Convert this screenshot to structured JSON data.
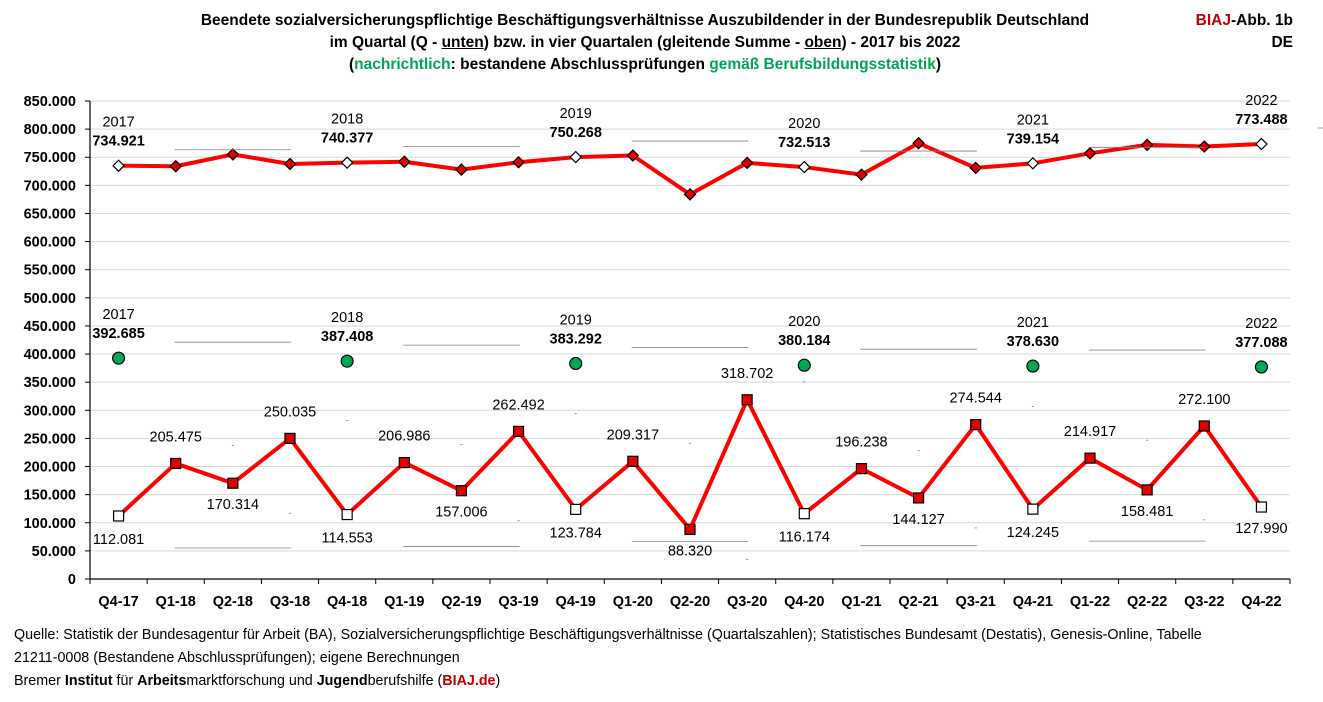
{
  "title": {
    "line1": "Beendete sozialversicherungspflichtige Beschäftigungsverhältnisse Auszubildender in der Bundesrepublik Deutschland",
    "line2_a": "im Quartal (Q - ",
    "line2_unten": "unten",
    "line2_b": ") bzw. in vier Quartalen (gleitende Summe - ",
    "line2_oben": "oben",
    "line2_c": ") - 2017 bis 2022",
    "line3_open": "(",
    "line3_nachrichtlich": "nachrichtlich",
    "line3_mid": ": bestandene Abschlussprüfungen ",
    "line3_gemaess": "gemäß Berufsbildungsstatistik",
    "line3_close": ")"
  },
  "badge": {
    "biaj": "BIAJ",
    "abb": "-Abb. 1b",
    "region": "DE"
  },
  "source": {
    "line1": "Quelle: Statistik der Bundesagentur für Arbeit (BA), Sozialversicherungspflichtige Beschäftigungsverhältnisse (Quartalszahlen); Statistisches Bundesamt (Destatis), Genesis-Online, Tabelle",
    "line2": "21211-0008 (Bestandene Abschlussprüfungen); eigene Berechnungen",
    "line3_a": "Bremer ",
    "line3_b": "Institut",
    "line3_c": " für ",
    "line3_d": "Arbeits",
    "line3_e": "marktforschung und ",
    "line3_f": "Jugend",
    "line3_g": "berufshilfe (",
    "line3_h": "BIAJ.de",
    "line3_i": ")"
  },
  "colors": {
    "series_line": "#ff0000",
    "q4_marker": "#ffffff",
    "other_marker": "#e00000",
    "green_marker": "#00a651",
    "accent_red": "#c00000"
  },
  "chart_data": {
    "type": "line",
    "categories": [
      "Q4-17",
      "Q1-18",
      "Q2-18",
      "Q3-18",
      "Q4-18",
      "Q1-19",
      "Q2-19",
      "Q3-19",
      "Q4-19",
      "Q1-20",
      "Q2-20",
      "Q3-20",
      "Q4-20",
      "Q1-21",
      "Q2-21",
      "Q3-21",
      "Q4-21",
      "Q1-22",
      "Q2-22",
      "Q3-22",
      "Q4-22"
    ],
    "ylim": [
      0,
      850000
    ],
    "yticks": [
      "0",
      "50.000",
      "100.000",
      "150.000",
      "200.000",
      "250.000",
      "300.000",
      "350.000",
      "400.000",
      "450.000",
      "500.000",
      "550.000",
      "600.000",
      "650.000",
      "700.000",
      "750.000",
      "800.000",
      "850.000"
    ],
    "grid": true,
    "series": [
      {
        "values": [
          734921,
          734000,
          755000,
          738000,
          740377,
          742000,
          728000,
          741000,
          750268,
          753000,
          684000,
          740000,
          732513,
          719000,
          775000,
          731000,
          739154,
          757000,
          772000,
          769000,
          773488
        ],
        "q4_labels": [
          {
            "index": 0,
            "year": "2017",
            "value": "734.921"
          },
          {
            "index": 4,
            "year": "2018",
            "value": "740.377"
          },
          {
            "index": 8,
            "year": "2019",
            "value": "750.268"
          },
          {
            "index": 12,
            "year": "2020",
            "value": "732.513"
          },
          {
            "index": 16,
            "year": "2021",
            "value": "739.154"
          },
          {
            "index": 20,
            "year": "2022",
            "value": "773.488"
          }
        ]
      },
      {
        "values": [
          112081,
          205475,
          170314,
          250035,
          114553,
          206986,
          157006,
          262492,
          123784,
          209317,
          88320,
          318702,
          116174,
          196238,
          144127,
          274544,
          124245,
          214917,
          158481,
          272100,
          127990
        ],
        "data_labels": [
          "112.081",
          "205.475",
          "170.314",
          "250.035",
          "114.553",
          "206.986",
          "157.006",
          "262.492",
          "123.784",
          "209.317",
          "88.320",
          "318.702",
          "116.174",
          "196.238",
          "144.127",
          "274.544",
          "124.245",
          "214.917",
          "158.481",
          "272.100",
          "127.990"
        ]
      }
    ],
    "pruefungen": [
      {
        "index": 0,
        "value": 392685,
        "year": "2017",
        "label": "392.685"
      },
      {
        "index": 4,
        "value": 387408,
        "year": "2018",
        "label": "387.408"
      },
      {
        "index": 8,
        "value": 383292,
        "year": "2019",
        "label": "383.292"
      },
      {
        "index": 12,
        "value": 380184,
        "year": "2020",
        "label": "380.184"
      },
      {
        "index": 16,
        "value": 378630,
        "year": "2021",
        "label": "378.630"
      },
      {
        "index": 20,
        "value": 377088,
        "year": "2022",
        "label": "377.088"
      }
    ]
  }
}
